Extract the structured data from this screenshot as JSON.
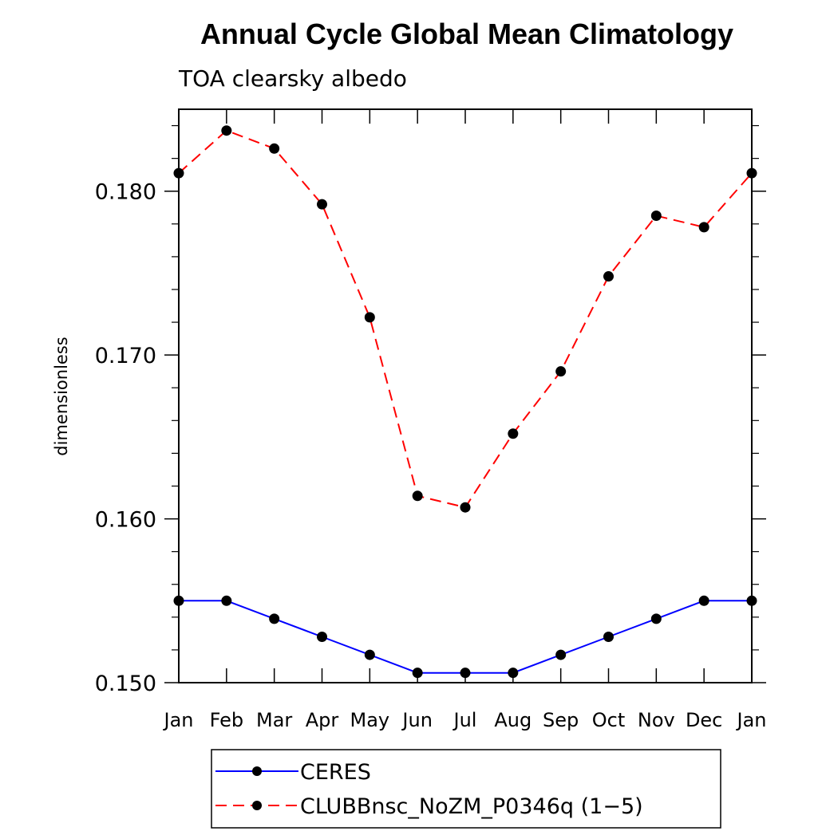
{
  "chart_data": {
    "type": "line",
    "title": "Annual Cycle Global Mean Climatology",
    "subtitle": "TOA clearsky albedo",
    "ylabel": "dimensionless",
    "xlabel": "",
    "categories": [
      "Jan",
      "Feb",
      "Mar",
      "Apr",
      "May",
      "Jun",
      "Jul",
      "Aug",
      "Sep",
      "Oct",
      "Nov",
      "Dec",
      "Jan"
    ],
    "ylim": [
      0.15,
      0.185
    ],
    "yticks": [
      0.15,
      0.16,
      0.17,
      0.18
    ],
    "ytick_labels": [
      "0.150",
      "0.160",
      "0.170",
      "0.180"
    ],
    "grid": false,
    "legend_position": "bottom-center",
    "series": [
      {
        "name": "CERES",
        "color": "#0000ff",
        "dash": "solid",
        "values": [
          0.155,
          0.155,
          0.1539,
          0.1528,
          0.1517,
          0.1506,
          0.1506,
          0.1506,
          0.1517,
          0.1528,
          0.1539,
          0.155,
          0.155
        ]
      },
      {
        "name": "CLUBBnsc_NoZM_P0346q (1-5)",
        "color": "#ff0000",
        "dash": "dashed",
        "values": [
          0.1811,
          0.1837,
          0.1826,
          0.1792,
          0.1723,
          0.1614,
          0.1607,
          0.1652,
          0.169,
          0.1748,
          0.1785,
          0.1778,
          0.1811
        ]
      }
    ]
  },
  "legend": {
    "entries": [
      "CERES",
      "CLUBBnsc_NoZM_P0346q (1−5)"
    ]
  }
}
